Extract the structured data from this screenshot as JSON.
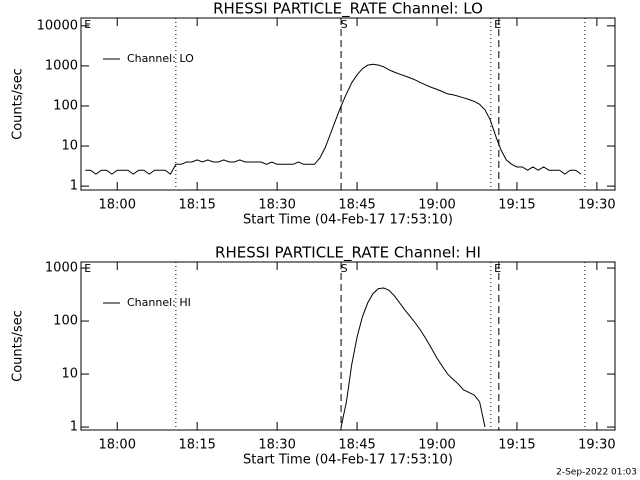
{
  "chart_data": [
    {
      "type": "line",
      "title": "RHESSI PARTICLE_RATE Channel: LO",
      "xlabel": "Start Time (04-Feb-17 17:53:10)",
      "ylabel": "Counts/sec",
      "log_y": true,
      "legend": "upper left",
      "xlim": [
        1073.2,
        1173.4
      ],
      "ylim": [
        0.8,
        15700
      ],
      "xticks": [
        {
          "value": 1080,
          "label": "18:00"
        },
        {
          "value": 1095,
          "label": "18:15"
        },
        {
          "value": 1110,
          "label": "18:30"
        },
        {
          "value": 1125,
          "label": "18:45"
        },
        {
          "value": 1140,
          "label": "19:00"
        },
        {
          "value": 1155,
          "label": "19:15"
        },
        {
          "value": 1170,
          "label": "19:30"
        }
      ],
      "yticks": [
        1,
        10,
        100,
        1000,
        10000
      ],
      "x": [
        1074,
        1075,
        1076,
        1077,
        1078,
        1079,
        1080,
        1081,
        1082,
        1083,
        1084,
        1085,
        1086,
        1087,
        1088,
        1089,
        1090,
        1091,
        1092,
        1093,
        1094,
        1095,
        1096,
        1097,
        1098,
        1099,
        1100,
        1101,
        1102,
        1103,
        1104,
        1105,
        1106,
        1107,
        1108,
        1109,
        1110,
        1111,
        1112,
        1113,
        1114,
        1115,
        1116,
        1117,
        1118,
        1119,
        1120,
        1121,
        1122,
        1123,
        1124,
        1125,
        1126,
        1127,
        1128,
        1129,
        1130,
        1131,
        1132,
        1133,
        1134,
        1135,
        1136,
        1137,
        1138,
        1139,
        1140,
        1141,
        1142,
        1143,
        1144,
        1145,
        1146,
        1147,
        1148,
        1149,
        1150,
        1151,
        1152,
        1153,
        1154,
        1155,
        1156,
        1157,
        1158,
        1159,
        1160,
        1161,
        1162,
        1163,
        1164,
        1165,
        1166,
        1167
      ],
      "series": [
        {
          "name": "Channel: LO",
          "color": "#000000",
          "values": [
            2.5,
            2.5,
            2,
            2.5,
            2.5,
            2,
            2.5,
            2.5,
            2.5,
            2,
            2.5,
            2.5,
            2,
            2.5,
            2.5,
            2.5,
            2,
            3.5,
            3.5,
            4,
            4,
            4.5,
            4,
            4.5,
            4,
            4,
            4.5,
            4,
            4,
            4.5,
            4,
            4,
            4,
            4,
            3.5,
            4,
            3.5,
            3.5,
            3.5,
            3.5,
            4,
            3.5,
            3.5,
            3.5,
            5,
            9,
            20,
            45,
            100,
            200,
            380,
            600,
            850,
            1050,
            1100,
            1050,
            950,
            800,
            700,
            620,
            560,
            500,
            440,
            380,
            330,
            290,
            260,
            230,
            200,
            190,
            175,
            160,
            145,
            130,
            110,
            80,
            45,
            18,
            8,
            4.5,
            3.5,
            3,
            3,
            2.5,
            3,
            2.5,
            3,
            2.5,
            2.5,
            2.5,
            2,
            2.5,
            2.5,
            2
          ]
        }
      ],
      "markers": [
        {
          "x": 1091,
          "style": "dotted"
        },
        {
          "x": 1122,
          "style": "dashed"
        },
        {
          "x": 1150.1,
          "style": "dotted"
        },
        {
          "x": 1151.6,
          "style": "dashed"
        },
        {
          "x": 1167.75,
          "style": "dotted"
        }
      ],
      "annotations": [
        {
          "text": "E",
          "x": 1073.9
        },
        {
          "text": "S",
          "x": 1122
        },
        {
          "text": "E",
          "x": 1150.8
        }
      ]
    },
    {
      "type": "line",
      "title": "RHESSI PARTICLE_RATE Channel: HI",
      "xlabel": "Start Time (04-Feb-17 17:53:10)",
      "ylabel": "Counts/sec",
      "log_y": true,
      "legend": "upper left",
      "xlim": [
        1073.2,
        1173.4
      ],
      "ylim": [
        0.88,
        1300
      ],
      "xticks": [
        {
          "value": 1080,
          "label": "18:00"
        },
        {
          "value": 1095,
          "label": "18:15"
        },
        {
          "value": 1110,
          "label": "18:30"
        },
        {
          "value": 1125,
          "label": "18:45"
        },
        {
          "value": 1140,
          "label": "19:00"
        },
        {
          "value": 1155,
          "label": "19:15"
        },
        {
          "value": 1170,
          "label": "19:30"
        }
      ],
      "yticks": [
        1,
        10,
        100,
        1000
      ],
      "x": [
        1122,
        1123,
        1124,
        1125,
        1126,
        1127,
        1128,
        1129,
        1130,
        1131,
        1132,
        1133,
        1134,
        1135,
        1136,
        1137,
        1138,
        1139,
        1140,
        1141,
        1142,
        1143,
        1144,
        1145,
        1146,
        1147,
        1148,
        1149
      ],
      "series": [
        {
          "name": "Channel: HI",
          "color": "#000000",
          "values": [
            1,
            3,
            15,
            50,
            120,
            220,
            330,
            410,
            420,
            380,
            300,
            220,
            160,
            120,
            90,
            65,
            45,
            30,
            20,
            14,
            10,
            8,
            6.5,
            5,
            4.5,
            4,
            3,
            1
          ]
        }
      ],
      "markers": [
        {
          "x": 1091,
          "style": "dotted"
        },
        {
          "x": 1122,
          "style": "dashed"
        },
        {
          "x": 1150.1,
          "style": "dotted"
        },
        {
          "x": 1151.6,
          "style": "dashed"
        },
        {
          "x": 1167.75,
          "style": "dotted"
        }
      ],
      "annotations": [
        {
          "text": "E",
          "x": 1073.9
        },
        {
          "text": "S",
          "x": 1122
        },
        {
          "text": "E",
          "x": 1150.8
        }
      ]
    }
  ],
  "footer": "2-Sep-2022 01:03"
}
